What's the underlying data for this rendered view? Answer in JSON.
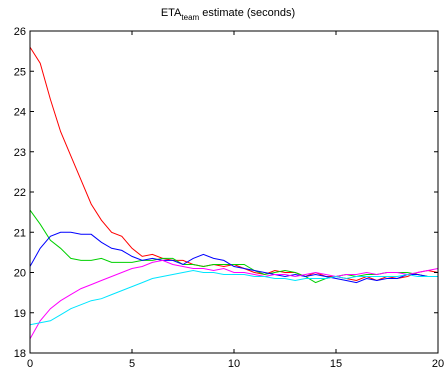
{
  "chart_data": {
    "type": "line",
    "title": "ETA",
    "title_subscript": "team",
    "title_suffix": " estimate (seconds)",
    "xlabel": "",
    "ylabel": "",
    "xlim": [
      0,
      20
    ],
    "ylim": [
      18,
      26
    ],
    "xticks": [
      0,
      5,
      10,
      15,
      20
    ],
    "yticks": [
      18,
      19,
      20,
      21,
      22,
      23,
      24,
      25,
      26
    ],
    "grid": false,
    "legend": "none",
    "series": [
      {
        "color": "#ff0000",
        "x": [
          0,
          0.5,
          1,
          1.5,
          2,
          2.5,
          3,
          3.5,
          4,
          4.5,
          5,
          5.5,
          6,
          6.5,
          7,
          7.5,
          8,
          8.5,
          9,
          9.5,
          10,
          10.5,
          11,
          11.5,
          12,
          12.5,
          13,
          13.5,
          14,
          14.5,
          15,
          15.5,
          16,
          16.5,
          17,
          17.5,
          18,
          18.5,
          19,
          19.5,
          20
        ],
        "y": [
          25.6,
          25.2,
          24.3,
          23.5,
          22.9,
          22.3,
          21.7,
          21.3,
          21.0,
          20.9,
          20.6,
          20.4,
          20.45,
          20.35,
          20.3,
          20.3,
          20.2,
          20.15,
          20.2,
          20.15,
          20.2,
          20.1,
          20.0,
          19.95,
          20.05,
          20.0,
          20.0,
          19.9,
          20.0,
          19.9,
          19.9,
          19.85,
          19.8,
          19.9,
          19.8,
          19.9,
          19.85,
          19.9,
          20.0,
          20.05,
          20.0
        ]
      },
      {
        "color": "#00d000",
        "x": [
          0,
          0.5,
          1,
          1.5,
          2,
          2.5,
          3,
          3.5,
          4,
          4.5,
          5,
          5.5,
          6,
          6.5,
          7,
          7.5,
          8,
          8.5,
          9,
          9.5,
          10,
          10.5,
          11,
          11.5,
          12,
          12.5,
          13,
          13.5,
          14,
          14.5,
          15,
          15.5,
          16,
          16.5,
          17,
          17.5,
          18,
          18.5,
          19,
          19.5,
          20
        ],
        "y": [
          21.55,
          21.2,
          20.8,
          20.6,
          20.35,
          20.3,
          20.3,
          20.35,
          20.25,
          20.25,
          20.25,
          20.3,
          20.3,
          20.35,
          20.35,
          20.2,
          20.2,
          20.15,
          20.2,
          20.2,
          20.2,
          20.2,
          20.05,
          19.95,
          20.0,
          20.05,
          20.0,
          19.9,
          19.75,
          19.85,
          19.9,
          19.95,
          19.9,
          19.95,
          19.95,
          20.0,
          20.0,
          20.0,
          19.95,
          19.9,
          19.9
        ]
      },
      {
        "color": "#0000ff",
        "x": [
          0,
          0.5,
          1,
          1.5,
          2,
          2.5,
          3,
          3.5,
          4,
          4.5,
          5,
          5.5,
          6,
          6.5,
          7,
          7.5,
          8,
          8.5,
          9,
          9.5,
          10,
          10.5,
          11,
          11.5,
          12,
          12.5,
          13,
          13.5,
          14,
          14.5,
          15,
          15.5,
          16,
          16.5,
          17,
          17.5,
          18,
          18.5,
          19,
          19.5,
          20
        ],
        "y": [
          20.15,
          20.6,
          20.9,
          21.0,
          21.0,
          20.95,
          20.95,
          20.75,
          20.6,
          20.55,
          20.4,
          20.3,
          20.35,
          20.3,
          20.3,
          20.2,
          20.35,
          20.45,
          20.35,
          20.3,
          20.15,
          20.1,
          20.05,
          20.0,
          19.95,
          19.9,
          19.95,
          19.9,
          19.95,
          19.9,
          19.85,
          19.8,
          19.75,
          19.85,
          19.8,
          19.85,
          19.85,
          19.95,
          19.95,
          19.9,
          19.9
        ]
      },
      {
        "color": "#ff00ff",
        "x": [
          0,
          0.5,
          1,
          1.5,
          2,
          2.5,
          3,
          3.5,
          4,
          4.5,
          5,
          5.5,
          6,
          6.5,
          7,
          7.5,
          8,
          8.5,
          9,
          9.5,
          10,
          10.5,
          11,
          11.5,
          12,
          12.5,
          13,
          13.5,
          14,
          14.5,
          15,
          15.5,
          16,
          16.5,
          17,
          17.5,
          18,
          18.5,
          19,
          19.5,
          20
        ],
        "y": [
          18.35,
          18.8,
          19.1,
          19.3,
          19.45,
          19.6,
          19.7,
          19.8,
          19.9,
          20.0,
          20.1,
          20.15,
          20.25,
          20.3,
          20.2,
          20.15,
          20.1,
          20.1,
          20.05,
          20.1,
          20.0,
          20.0,
          19.95,
          19.9,
          19.95,
          19.95,
          19.9,
          19.95,
          20.0,
          19.95,
          19.9,
          19.95,
          19.95,
          20.0,
          19.95,
          20.0,
          20.0,
          19.95,
          20.0,
          20.05,
          20.1
        ]
      },
      {
        "color": "#00e5ff",
        "x": [
          0,
          0.5,
          1,
          1.5,
          2,
          2.5,
          3,
          3.5,
          4,
          4.5,
          5,
          5.5,
          6,
          6.5,
          7,
          7.5,
          8,
          8.5,
          9,
          9.5,
          10,
          10.5,
          11,
          11.5,
          12,
          12.5,
          13,
          13.5,
          14,
          14.5,
          15,
          15.5,
          16,
          16.5,
          17,
          17.5,
          18,
          18.5,
          19,
          19.5,
          20
        ],
        "y": [
          18.7,
          18.75,
          18.8,
          18.95,
          19.1,
          19.2,
          19.3,
          19.35,
          19.45,
          19.55,
          19.65,
          19.75,
          19.85,
          19.9,
          19.95,
          20.0,
          20.05,
          20.0,
          20.0,
          19.95,
          19.95,
          19.95,
          19.9,
          19.9,
          19.85,
          19.85,
          19.8,
          19.85,
          19.85,
          19.85,
          19.9,
          19.85,
          19.9,
          19.9,
          19.9,
          19.9,
          19.9,
          19.95,
          19.9,
          19.9,
          19.9
        ]
      }
    ]
  }
}
